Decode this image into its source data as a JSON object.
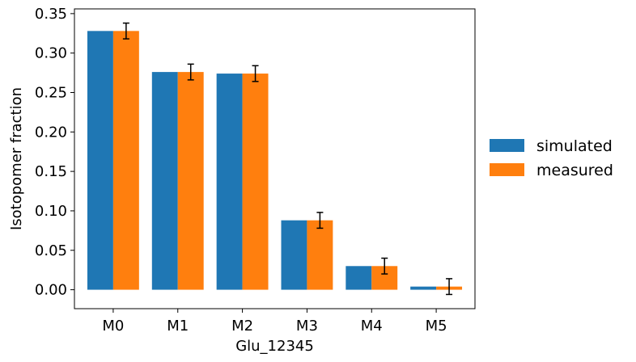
{
  "chart_data": {
    "type": "bar",
    "title": "",
    "xlabel": "Glu_12345",
    "ylabel": "Isotopomer fraction",
    "categories": [
      "M0",
      "M1",
      "M2",
      "M3",
      "M4",
      "M5"
    ],
    "series": [
      {
        "name": "simulated",
        "color": "#1f77b4",
        "values": [
          0.328,
          0.276,
          0.274,
          0.088,
          0.03,
          0.004
        ]
      },
      {
        "name": "measured",
        "color": "#ff7f0e",
        "values": [
          0.328,
          0.276,
          0.274,
          0.088,
          0.03,
          0.004
        ],
        "errors": [
          0.01,
          0.01,
          0.01,
          0.01,
          0.01,
          0.01
        ]
      }
    ],
    "ylim": [
      -0.024,
      0.356
    ],
    "yticks": [
      0.0,
      0.05,
      0.1,
      0.15,
      0.2,
      0.25,
      0.3,
      0.35
    ],
    "ytick_labels": [
      "0.00",
      "0.05",
      "0.10",
      "0.15",
      "0.20",
      "0.25",
      "0.30",
      "0.35"
    ],
    "grid": false,
    "legend_position": "center-right, outside plot"
  }
}
